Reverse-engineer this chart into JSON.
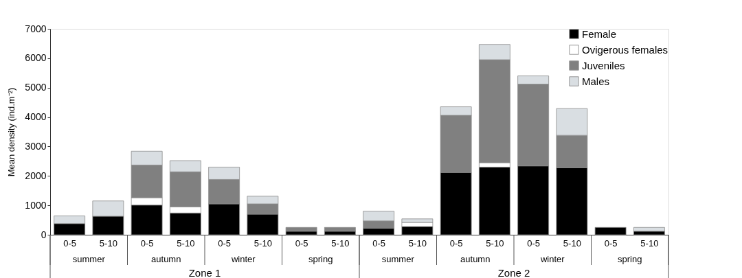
{
  "chart_data": {
    "type": "bar",
    "stacked": true,
    "ylabel": "Mean density (ind.m⁻²)",
    "categories": [
      "0-5",
      "5-10",
      "0-5",
      "5-10",
      "0-5",
      "5-10",
      "0-5",
      "5-10",
      "0-5",
      "5-10",
      "0-5",
      "5-10",
      "0-5",
      "5-10",
      "0-5",
      "5-10"
    ],
    "series": [
      {
        "name": "Female",
        "color": "#000000",
        "values": [
          380,
          630,
          1010,
          740,
          1050,
          700,
          120,
          120,
          220,
          280,
          2120,
          2300,
          2340,
          2280,
          250,
          120
        ]
      },
      {
        "name": "Ovigerous females",
        "color": "#ffffff",
        "values": [
          0,
          0,
          250,
          210,
          0,
          0,
          0,
          0,
          0,
          140,
          0,
          150,
          0,
          0,
          0,
          0
        ]
      },
      {
        "name": "Juveniles",
        "color": "#808080",
        "values": [
          0,
          0,
          1110,
          1190,
          830,
          350,
          130,
          130,
          250,
          0,
          1940,
          3500,
          2780,
          1100,
          0,
          0
        ]
      },
      {
        "name": "Males",
        "color": "#d9dee2",
        "values": [
          260,
          520,
          470,
          380,
          420,
          260,
          0,
          0,
          330,
          120,
          290,
          520,
          280,
          910,
          0,
          130
        ]
      }
    ],
    "ylim": [
      0,
      7000
    ],
    "yticks": [
      0,
      1000,
      2000,
      3000,
      4000,
      5000,
      6000,
      7000
    ],
    "grid": false,
    "legend": "top right",
    "annotations": [
      "summer",
      "autumn",
      "winter",
      "spring",
      "summer",
      "autumn",
      "winter",
      "spring",
      "Zone 1",
      "Zone 2"
    ]
  }
}
